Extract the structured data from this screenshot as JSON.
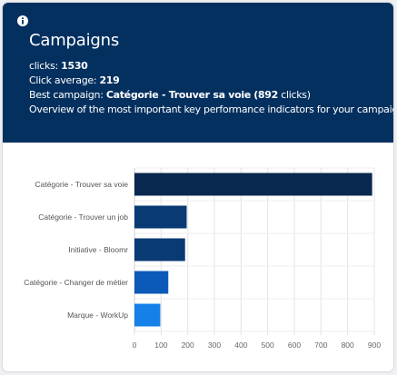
{
  "widget": {
    "title": "Campaigns",
    "clicks_label": "clicks:",
    "clicks_value": "1530",
    "average_label": "Click average:",
    "average_value": "219",
    "best_label": "Best campaign:",
    "best_value": "Catégorie - Trouver sa voie",
    "best_clicks": "(892",
    "best_clicks_unit": "clicks)",
    "description": "Overview of the most important key performance indicators for your campaigns"
  },
  "colors": {
    "header_bg": "#04305f",
    "bar_dark": "#08284f",
    "bar_mid": "#0a3a74",
    "bar_blue": "#0b5ab8",
    "bar_light": "#1480e8"
  },
  "chart_data": {
    "type": "bar",
    "orientation": "horizontal",
    "categories": [
      "Catégorie - Trouver sa voie",
      "Catégorie - Trouver un job",
      "Initiative - Bloomr",
      "Catégorie - Changer de métier",
      "Marque - WorkUp"
    ],
    "values": [
      892,
      196,
      190,
      127,
      97
    ],
    "bar_colors": [
      "#08284f",
      "#0a3a74",
      "#0a3a74",
      "#0b5ab8",
      "#1480e8"
    ],
    "xlim": [
      0,
      900
    ],
    "xticks": [
      "0",
      "100",
      "200",
      "300",
      "400",
      "500",
      "600",
      "700",
      "800",
      "900"
    ],
    "grid": true,
    "title": "",
    "xlabel": "",
    "ylabel": ""
  }
}
